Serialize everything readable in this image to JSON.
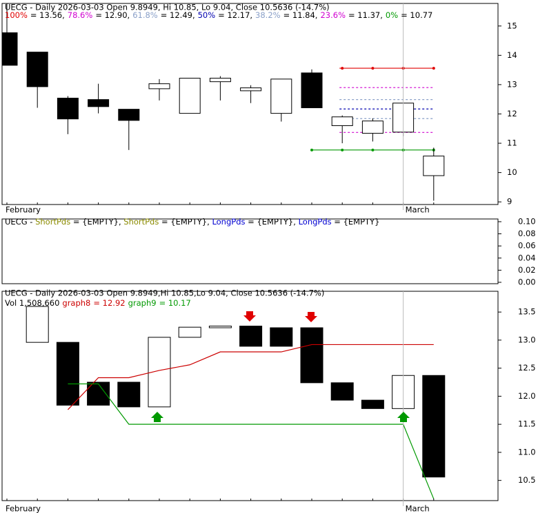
{
  "chart_data": [
    {
      "type": "candlestick",
      "title": "UECG - Daily 2026-03-03 Open 9.8949, Hi 10.85, Lo 9.04, Close 10.5636 (-14.7%)",
      "fib_levels": [
        {
          "label": "100%",
          "text": "= 13.56,",
          "value": 13.56,
          "color": "#e00000"
        },
        {
          "label": "78.6%",
          "text": "= 12.90,",
          "value": 12.9,
          "color": "#d000d0"
        },
        {
          "label": "61.8%",
          "text": "= 12.49,",
          "value": 12.49,
          "color": "#8aa0c8"
        },
        {
          "label": "50%",
          "text": "= 12.17,",
          "value": 12.17,
          "color": "#0000b0"
        },
        {
          "label": "38.2%",
          "text": "= 11.84,",
          "value": 11.84,
          "color": "#8aa0c8"
        },
        {
          "label": "23.6%",
          "text": "= 11.37,",
          "value": 11.37,
          "color": "#d000d0"
        },
        {
          "label": "0%",
          "text": "= 10.77",
          "value": 10.77,
          "color": "#009900"
        }
      ],
      "categories": [
        "February",
        null,
        null,
        null,
        null,
        null,
        null,
        null,
        null,
        null,
        null,
        null,
        null,
        "March",
        null
      ],
      "open": [
        14.77,
        14.11,
        12.54,
        12.49,
        12.16,
        12.86,
        12.02,
        13.1,
        12.79,
        12.02,
        13.4,
        11.6,
        11.34,
        11.38,
        9.8949
      ],
      "high": [
        15.9,
        14.11,
        12.61,
        13.03,
        12.16,
        13.19,
        13.22,
        13.29,
        12.98,
        13.19,
        13.52,
        11.95,
        11.85,
        12.37,
        10.85
      ],
      "low": [
        13.66,
        12.21,
        11.31,
        12.02,
        10.77,
        12.46,
        12.02,
        12.46,
        12.37,
        11.74,
        12.21,
        11.0,
        11.06,
        11.24,
        9.04
      ],
      "close": [
        13.66,
        12.93,
        11.83,
        12.25,
        11.78,
        13.03,
        13.22,
        13.22,
        12.89,
        13.19,
        12.21,
        11.9,
        11.76,
        12.37,
        10.5636
      ],
      "up_color": "#ffffff",
      "down_color": "#000000",
      "ylim": [
        8.91,
        15.77
      ],
      "yticks": [
        9,
        10,
        11,
        12,
        13,
        14,
        15
      ]
    },
    {
      "type": "empty",
      "title_segments": [
        {
          "text": "UECG - ",
          "color": "#000000"
        },
        {
          "text": "ShortPds",
          "color": "#8a8a00"
        },
        {
          "text": " = {EMPTY}, ",
          "color": "#000000"
        },
        {
          "text": "ShortPds",
          "color": "#8a8a00"
        },
        {
          "text": " = {EMPTY}, ",
          "color": "#000000"
        },
        {
          "text": "LongPds",
          "color": "#0000d0"
        },
        {
          "text": " = {EMPTY}, ",
          "color": "#000000"
        },
        {
          "text": "LongPds",
          "color": "#0000d0"
        },
        {
          "text": " = {EMPTY}",
          "color": "#000000"
        }
      ],
      "ylim": [
        -0.0023,
        0.1045
      ],
      "yticks": [
        {
          "value": 0,
          "label": "0.00"
        },
        {
          "value": 0.02,
          "label": "0.02"
        },
        {
          "value": 0.04,
          "label": "0.04"
        },
        {
          "value": 0.06,
          "label": "0.06"
        },
        {
          "value": 0.08,
          "label": "0.08"
        },
        {
          "value": 0.1,
          "label": "0.10"
        }
      ]
    },
    {
      "type": "box",
      "title": "UECG - Daily 2026-03-03 Open 9.8949,Hi 10.85,Lo 9.04, Close 10.5636 (-14.7%)",
      "volume_label": "Vol 1,508,660",
      "categories": [
        "February",
        null,
        null,
        null,
        null,
        null,
        null,
        null,
        null,
        null,
        null,
        null,
        null,
        "March",
        null
      ],
      "open": [
        null,
        12.96,
        12.96,
        12.25,
        12.25,
        11.81,
        13.05,
        13.22,
        13.25,
        13.22,
        13.22,
        12.24,
        11.93,
        11.78,
        12.37
      ],
      "close": [
        null,
        13.6,
        11.84,
        11.84,
        11.81,
        13.05,
        13.23,
        13.25,
        12.89,
        12.89,
        12.24,
        11.93,
        11.78,
        12.37,
        10.56
      ],
      "up_color": "#ffffff",
      "down_color": "#000000",
      "series": [
        {
          "name": "graph8",
          "legend_text": "= 12.92",
          "color": "#cc0000",
          "values": [
            null,
            null,
            11.76,
            12.33,
            12.33,
            12.46,
            12.56,
            12.79,
            12.79,
            12.79,
            12.92,
            12.92,
            12.92,
            12.92,
            12.92
          ]
        },
        {
          "name": "graph9",
          "legend_text": "= 10.17",
          "color": "#009900",
          "values": [
            null,
            null,
            12.22,
            12.22,
            11.5,
            11.5,
            11.5,
            11.5,
            11.5,
            11.5,
            11.5,
            11.5,
            11.5,
            11.5,
            10.17
          ]
        }
      ],
      "ylim": [
        10.14,
        13.87
      ],
      "yticks": [
        10.5,
        {
          "value": 11,
          "label": "11.0"
        },
        11.5,
        {
          "value": 12,
          "label": "12.0"
        },
        12.5,
        {
          "value": 13,
          "label": "13.0"
        },
        13.5
      ]
    }
  ]
}
